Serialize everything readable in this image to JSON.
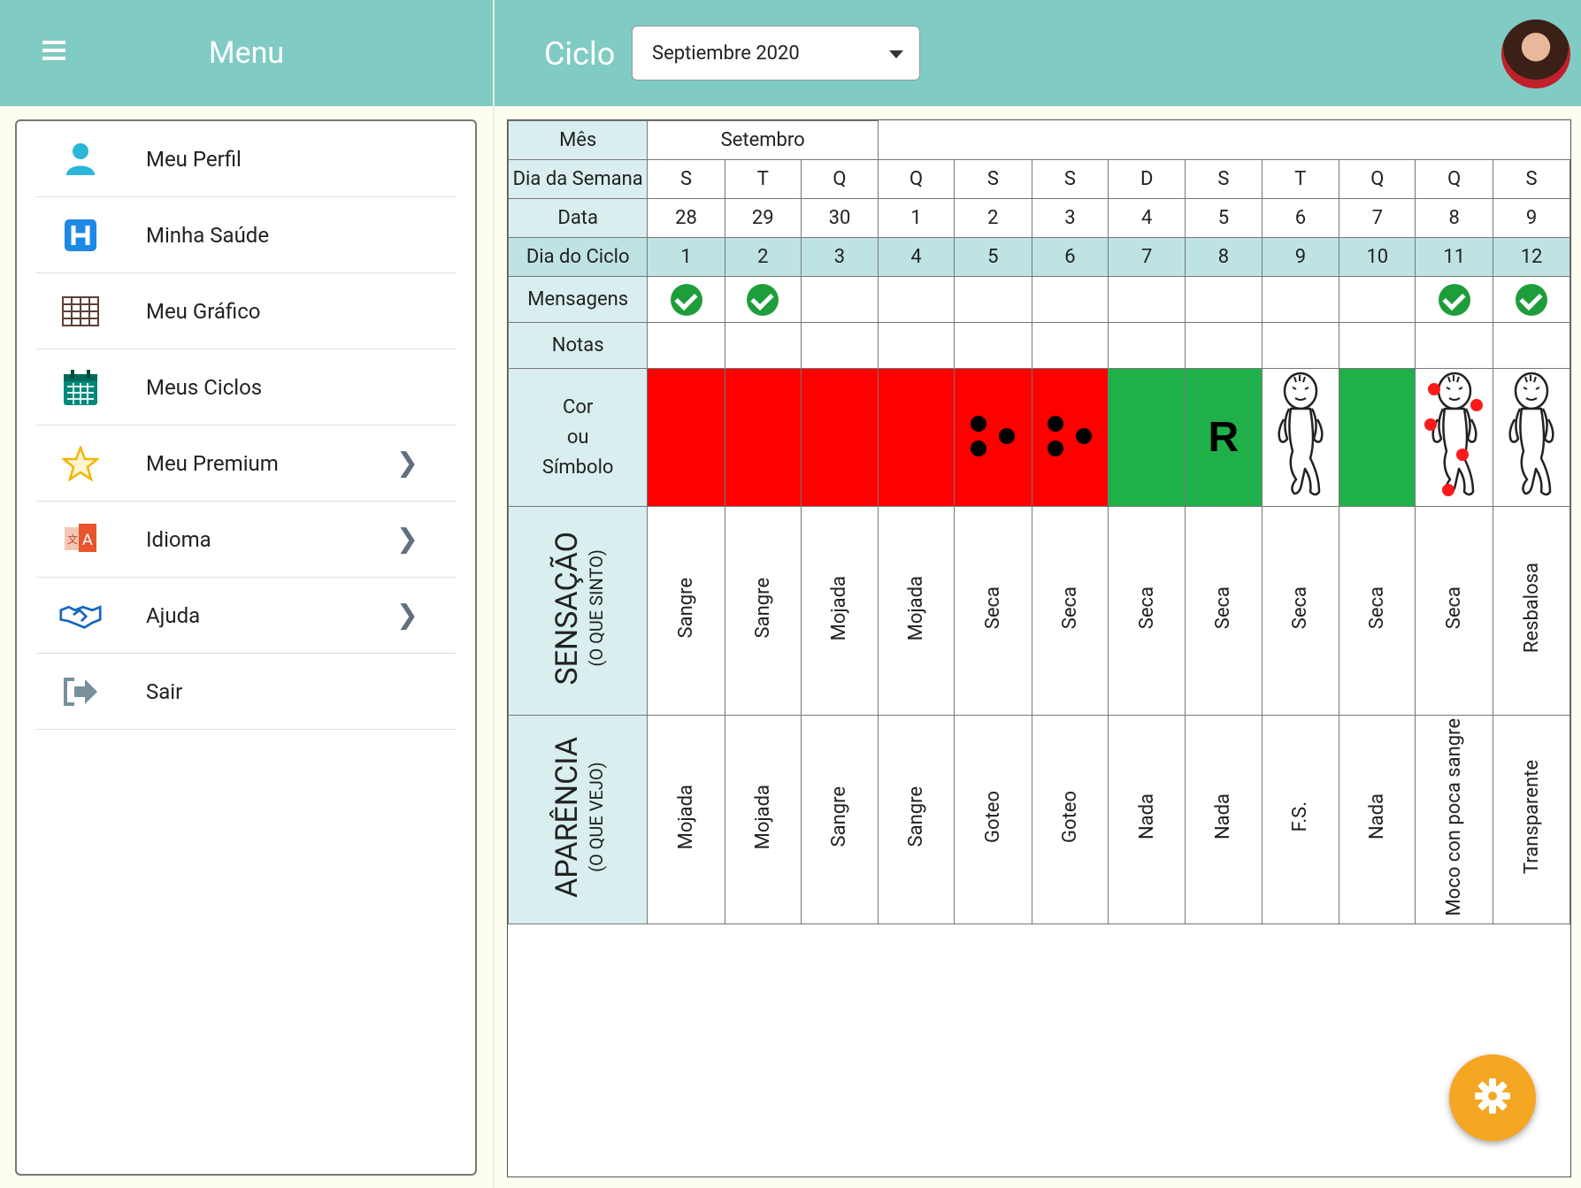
{
  "menu": {
    "title": "Menu",
    "items": [
      {
        "label": "Meu Perfil",
        "icon": "person-icon",
        "chevron": false
      },
      {
        "label": "Minha Saúde",
        "icon": "hospital-icon",
        "chevron": false
      },
      {
        "label": "Meu Gráfico",
        "icon": "grid-icon",
        "chevron": false
      },
      {
        "label": "Meus Ciclos",
        "icon": "calendar-icon",
        "chevron": false
      },
      {
        "label": "Meu Premium",
        "icon": "star-icon",
        "chevron": true
      },
      {
        "label": "Idioma",
        "icon": "translate-icon",
        "chevron": true
      },
      {
        "label": "Ajuda",
        "icon": "handshake-icon",
        "chevron": true
      },
      {
        "label": "Sair",
        "icon": "logout-icon",
        "chevron": false
      }
    ]
  },
  "header": {
    "cycle_label": "Ciclo",
    "cycle_select_value": "Septiembre 2020"
  },
  "table": {
    "row_labels": {
      "month": "Mês",
      "weekday": "Dia da Semana",
      "date": "Data",
      "cycle_day": "Dia do Ciclo",
      "messages": "Mensagens",
      "notes": "Notas",
      "color_1": "Cor",
      "color_2": "ou",
      "color_3": "Símbolo",
      "sensation_main": "SENSAÇÃO",
      "sensation_sub": "(O QUE SINTO)",
      "appearance_main": "APARÊNCIA",
      "appearance_sub": "(O QUE VEJO)"
    },
    "month_name": "Setembro",
    "weekdays": [
      "S",
      "T",
      "Q",
      "Q",
      "S",
      "S",
      "D",
      "S",
      "T",
      "Q",
      "Q",
      "S"
    ],
    "dates": [
      "28",
      "29",
      "30",
      "1",
      "2",
      "3",
      "4",
      "5",
      "6",
      "7",
      "8",
      "9"
    ],
    "cycle_days": [
      "1",
      "2",
      "3",
      "4",
      "5",
      "6",
      "7",
      "8",
      "9",
      "10",
      "11",
      "12"
    ],
    "messages": [
      true,
      true,
      false,
      false,
      false,
      false,
      false,
      false,
      false,
      false,
      true,
      true
    ],
    "symbols": [
      "red",
      "red",
      "red",
      "red",
      "red-dots",
      "red-dots",
      "green",
      "green-R",
      "baby",
      "green",
      "baby-red",
      "baby"
    ],
    "symbol_letter": "R",
    "sensation": [
      "Sangre",
      "Sangre",
      "Mojada",
      "Mojada",
      "Seca",
      "Seca",
      "Seca",
      "Seca",
      "Seca",
      "Seca",
      "Seca",
      "Resbalosa"
    ],
    "appearance": [
      "Mojada",
      "Mojada",
      "Sangre",
      "Sangre",
      "Goteo",
      "Goteo",
      "Nada",
      "Nada",
      "F.S.",
      "Nada",
      "Moco con poca sangre",
      "Transparente"
    ]
  },
  "colors": {
    "header_teal": "#80cbc4",
    "red": "#ff0000",
    "green": "#20b04a",
    "check_green": "#1e9e3a",
    "fab_orange": "#f5a623"
  },
  "fab_icon": "gear-icon"
}
